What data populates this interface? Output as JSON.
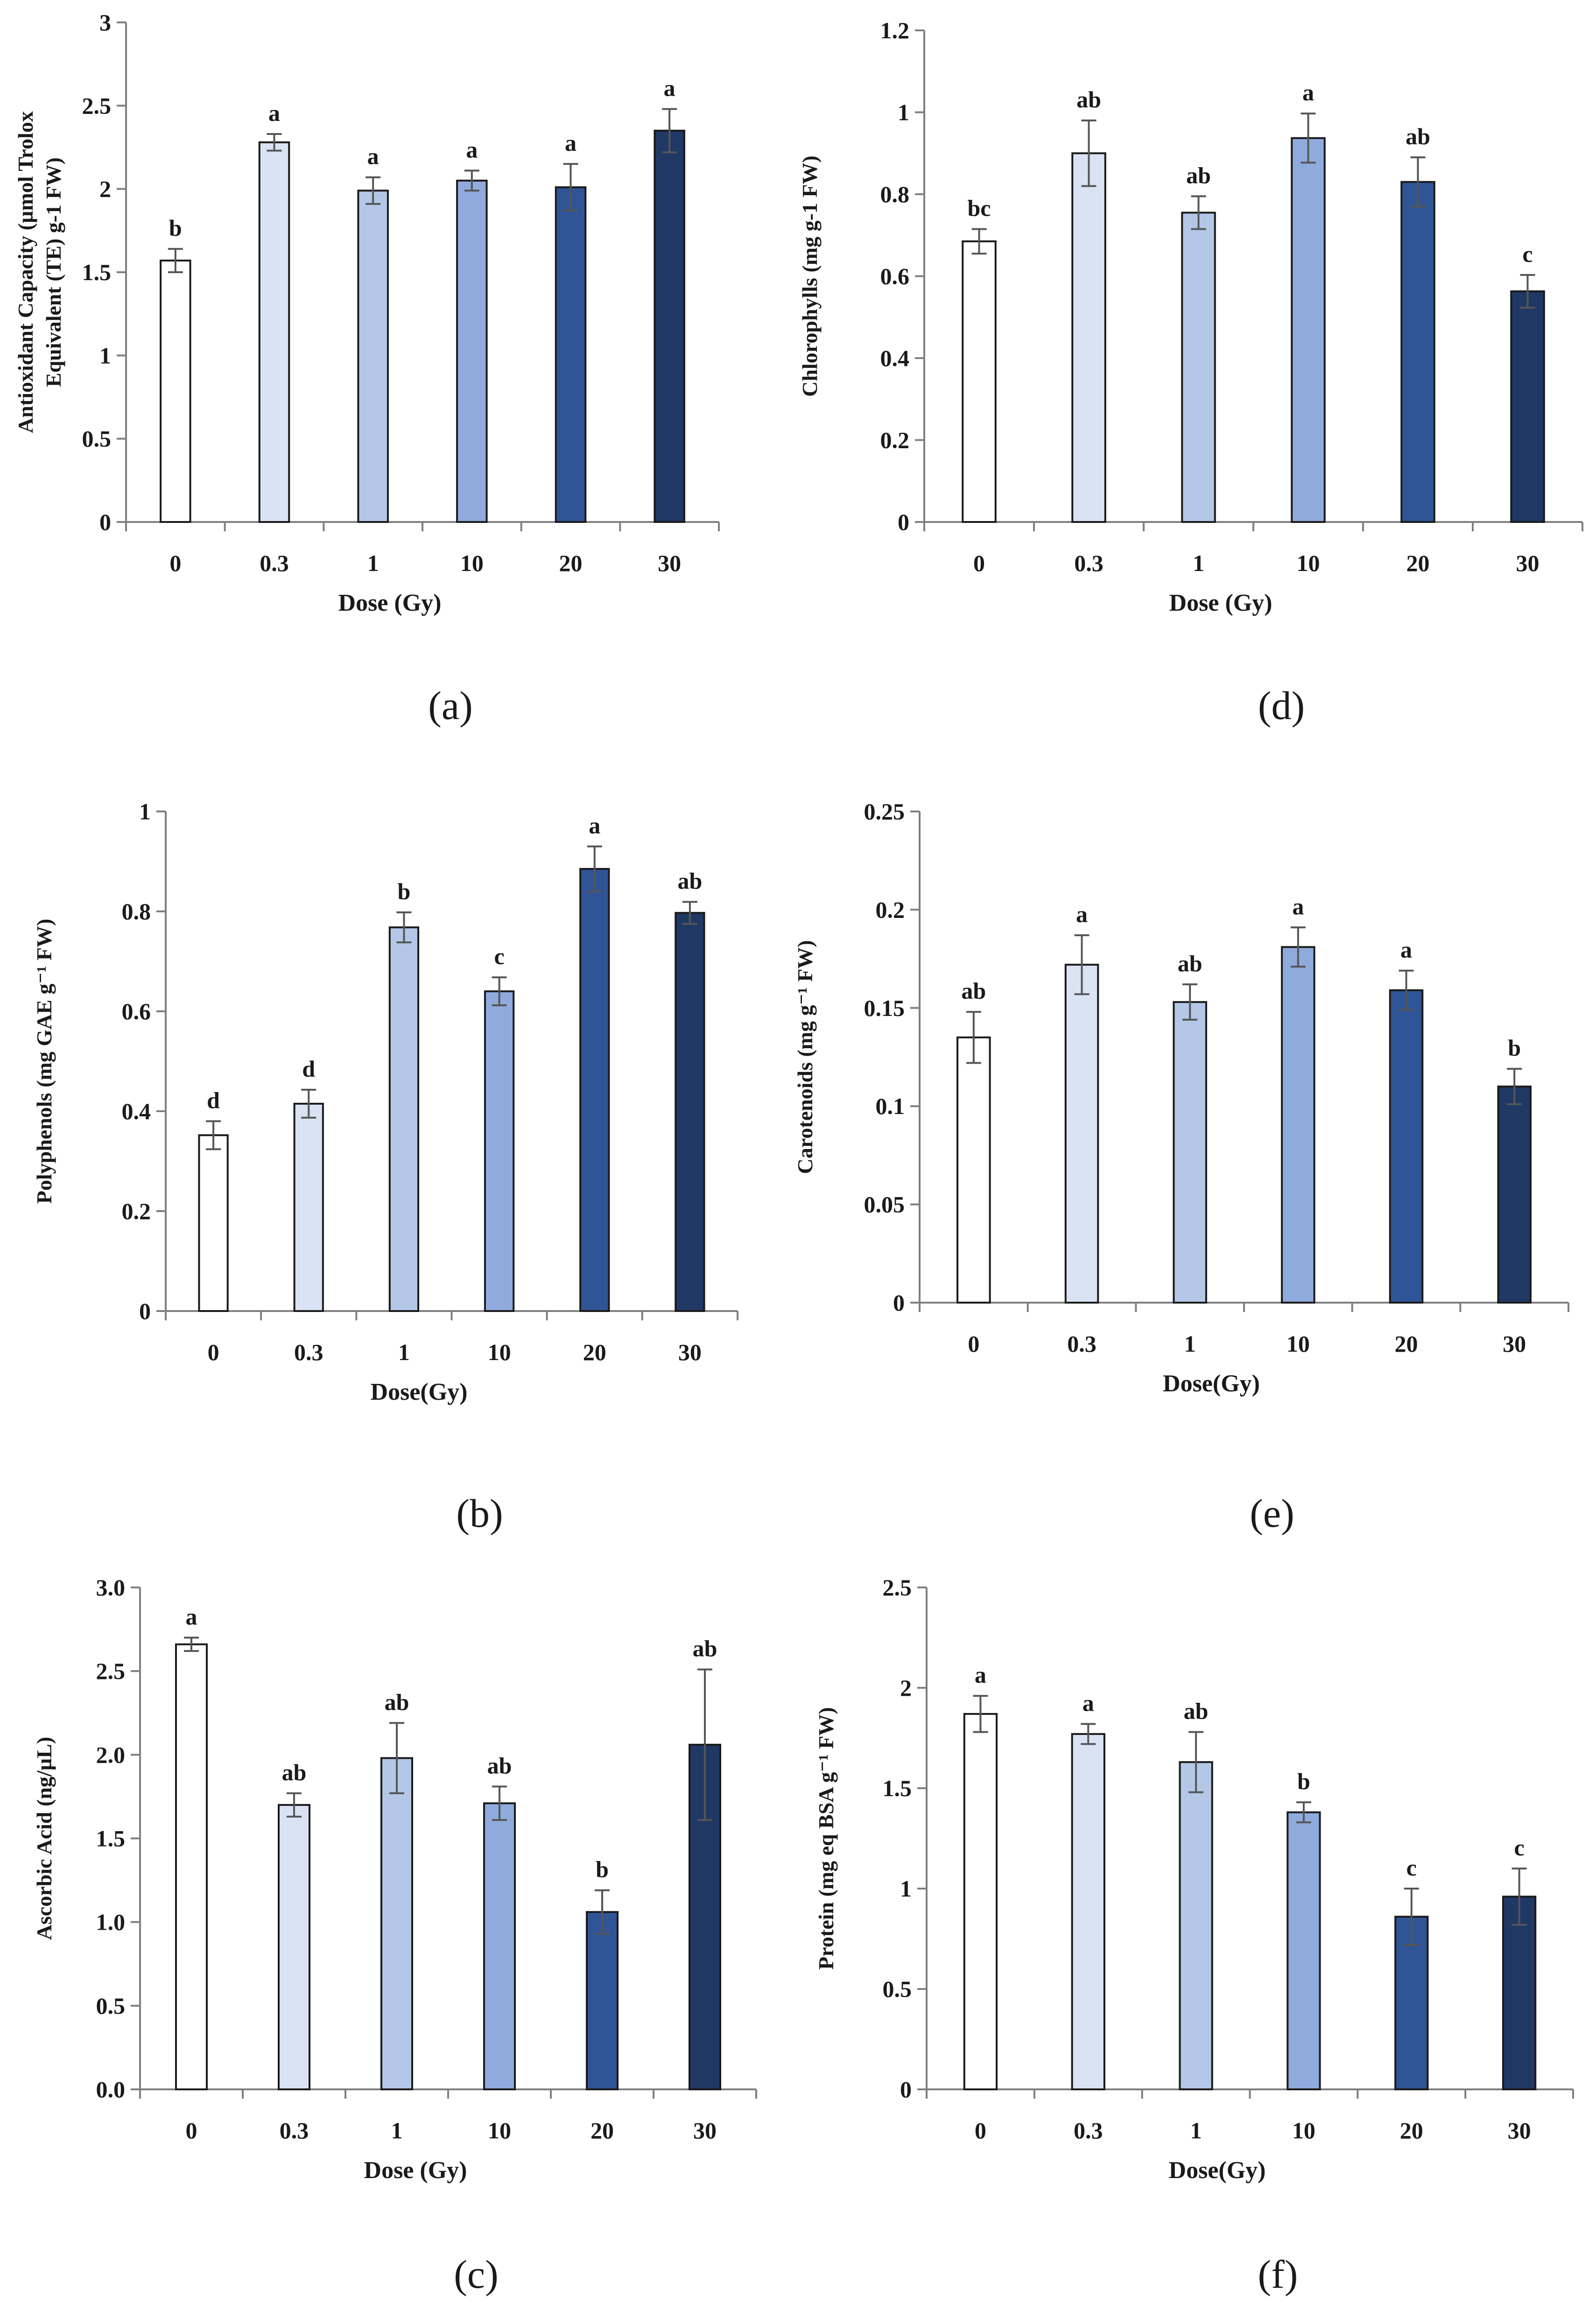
{
  "colors": [
    "#ffffff",
    "#dae3f3",
    "#b4c7e7",
    "#8faadc",
    "#2f5597",
    "#203864"
  ],
  "chart_data": [
    {
      "panel": "(a)",
      "type": "bar",
      "categories": [
        "0",
        "0.3",
        "1",
        "10",
        "20",
        "30"
      ],
      "values": [
        1.57,
        2.28,
        1.99,
        2.05,
        2.01,
        2.35
      ],
      "errors": [
        0.07,
        0.05,
        0.08,
        0.06,
        0.14,
        0.13
      ],
      "letters": [
        "b",
        "a",
        "a",
        "a",
        "a",
        "a"
      ],
      "ylabel_lines": [
        "Antioxidant Capacity (µmol Trolox",
        "Equivalent (TE) g-1 FW)"
      ],
      "xlabel": "Dose (Gy)",
      "ylim": [
        0,
        3
      ],
      "yticks": [
        0,
        0.5,
        1,
        1.5,
        2,
        2.5,
        3
      ],
      "ytick_labels": [
        "0",
        "0.5",
        "1",
        "1.5",
        "2",
        "2.5",
        "3"
      ]
    },
    {
      "panel": "(d)",
      "type": "bar",
      "categories": [
        "0",
        "0.3",
        "1",
        "10",
        "20",
        "30"
      ],
      "values": [
        0.685,
        0.9,
        0.755,
        0.937,
        0.83,
        0.563
      ],
      "errors": [
        0.03,
        0.08,
        0.04,
        0.06,
        0.06,
        0.04
      ],
      "letters": [
        "bc",
        "ab",
        "ab",
        "a",
        "ab",
        "c"
      ],
      "ylabel_lines": [
        "Chlorophylls  (mg g-1 FW)"
      ],
      "xlabel": "Dose (Gy)",
      "ylim": [
        0,
        1.2
      ],
      "yticks": [
        0,
        0.2,
        0.4,
        0.6,
        0.8,
        1,
        1.2
      ],
      "ytick_labels": [
        "0",
        "0.2",
        "0.4",
        "0.6",
        "0.8",
        "1",
        "1.2"
      ]
    },
    {
      "panel": "(b)",
      "type": "bar",
      "categories": [
        "0",
        "0.3",
        "1",
        "10",
        "20",
        "30"
      ],
      "values": [
        0.352,
        0.415,
        0.768,
        0.64,
        0.885,
        0.797
      ],
      "errors": [
        0.028,
        0.028,
        0.03,
        0.028,
        0.045,
        0.022
      ],
      "letters": [
        "d",
        "d",
        "b",
        "c",
        "a",
        "ab"
      ],
      "ylabel_lines": [
        "Polyphenols (mg GAE g⁻¹ FW)"
      ],
      "xlabel": "Dose(Gy)",
      "ylim": [
        0,
        1
      ],
      "yticks": [
        0,
        0.2,
        0.4,
        0.6,
        0.8,
        1
      ],
      "ytick_labels": [
        "0",
        "0.2",
        "0.4",
        "0.6",
        "0.8",
        "1"
      ]
    },
    {
      "panel": "(e)",
      "type": "bar",
      "categories": [
        "0",
        "0.3",
        "1",
        "10",
        "20",
        "30"
      ],
      "values": [
        0.135,
        0.172,
        0.153,
        0.181,
        0.159,
        0.11
      ],
      "errors": [
        0.013,
        0.015,
        0.009,
        0.01,
        0.01,
        0.009
      ],
      "letters": [
        "ab",
        "a",
        "ab",
        "a",
        "a",
        "b"
      ],
      "ylabel_lines": [
        "Carotenoids (mg g⁻¹ FW)"
      ],
      "xlabel": "Dose(Gy)",
      "ylim": [
        0,
        0.25
      ],
      "yticks": [
        0,
        0.05,
        0.1,
        0.15,
        0.2,
        0.25
      ],
      "ytick_labels": [
        "0",
        "0.05",
        "0.1",
        "0.15",
        "0.2",
        "0.25"
      ]
    },
    {
      "panel": "(c)",
      "type": "bar",
      "categories": [
        "0",
        "0.3",
        "1",
        "10",
        "20",
        "30"
      ],
      "values": [
        2.66,
        1.7,
        1.98,
        1.71,
        1.06,
        2.06
      ],
      "errors": [
        0.04,
        0.07,
        0.21,
        0.1,
        0.13,
        0.45
      ],
      "letters": [
        "a",
        "ab",
        "ab",
        "ab",
        "b",
        "ab"
      ],
      "ylabel_lines": [
        "Ascorbic Acid  (ng/µL)"
      ],
      "xlabel": "Dose (Gy)",
      "ylim": [
        0,
        3
      ],
      "yticks": [
        0,
        0.5,
        1,
        1.5,
        2,
        2.5,
        3
      ],
      "ytick_labels": [
        "0.0",
        "0.5",
        "1.0",
        "1.5",
        "2.0",
        "2.5",
        "3.0"
      ]
    },
    {
      "panel": "(f)",
      "type": "bar",
      "categories": [
        "0",
        "0.3",
        "1",
        "10",
        "20",
        "30"
      ],
      "values": [
        1.87,
        1.77,
        1.63,
        1.38,
        0.86,
        0.96
      ],
      "errors": [
        0.09,
        0.05,
        0.15,
        0.05,
        0.14,
        0.14
      ],
      "letters": [
        "a",
        "a",
        "ab",
        "b",
        "c",
        "c"
      ],
      "ylabel_lines": [
        "Protein (mg eq BSA g⁻¹ FW)"
      ],
      "xlabel": "Dose(Gy)",
      "ylim": [
        0,
        2.5
      ],
      "yticks": [
        0,
        0.5,
        1,
        1.5,
        2,
        2.5
      ],
      "ytick_labels": [
        "0",
        "0.5",
        "1",
        "1.5",
        "2",
        "2.5"
      ]
    }
  ]
}
